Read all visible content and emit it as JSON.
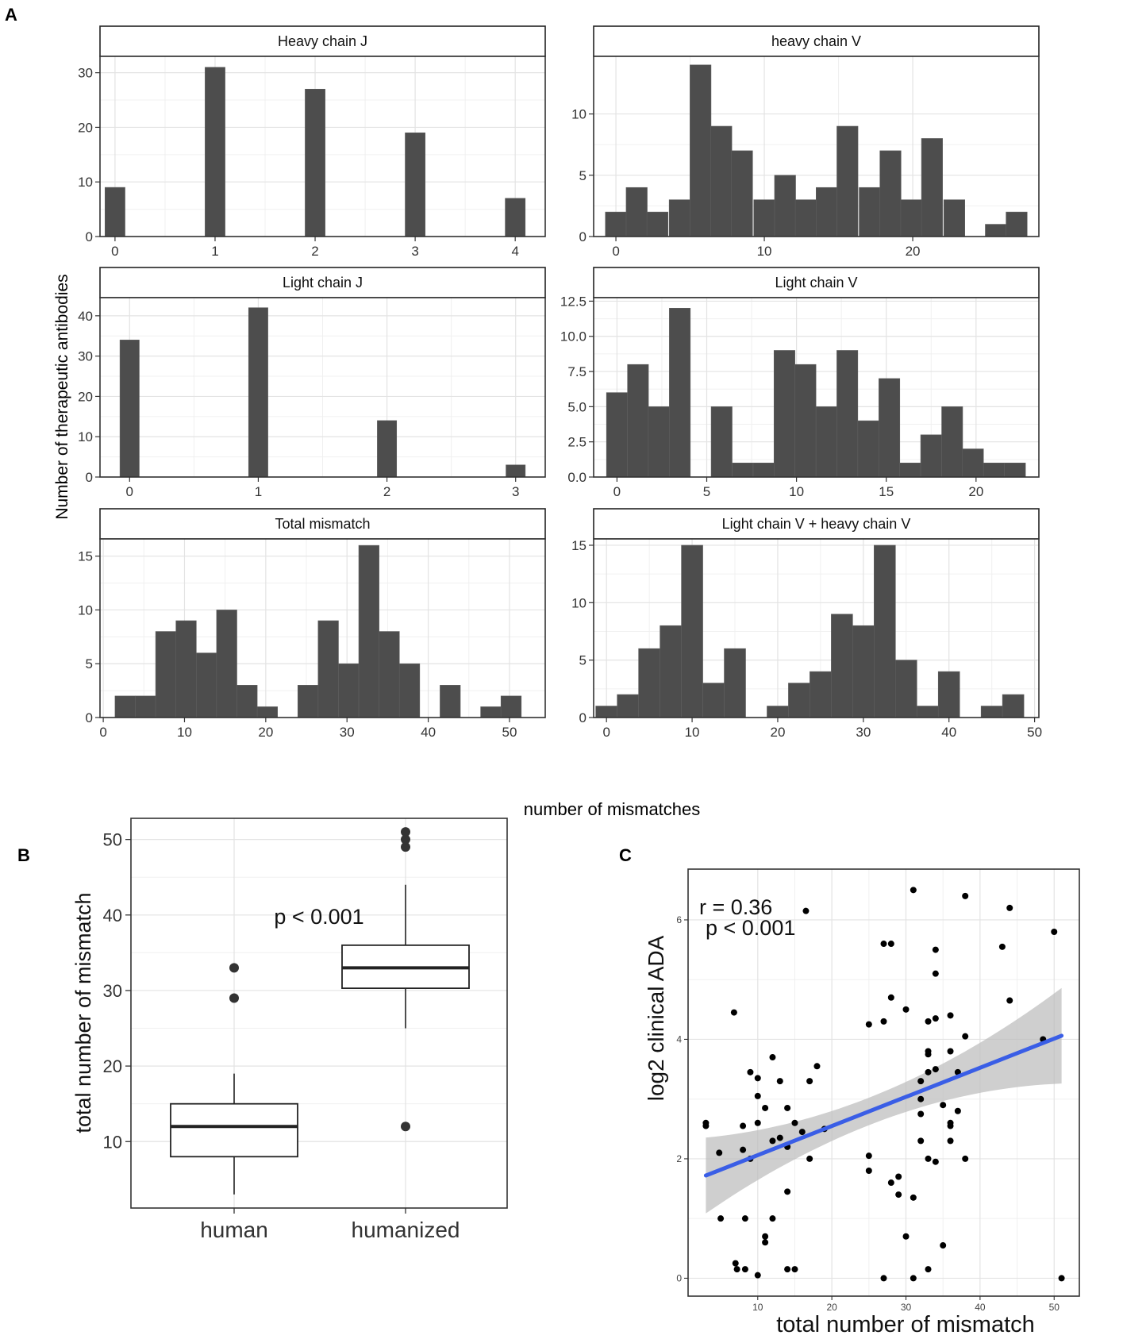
{
  "panel_labels": {
    "a": "A",
    "b": "B",
    "c": "C"
  },
  "panel_a": {
    "ylabel": "Number of therapeutic antibodies",
    "xlabel": "number of mismatches"
  },
  "chart_data": [
    {
      "id": "hj",
      "type": "bar",
      "title": "Heavy chain J",
      "x": [
        0,
        1,
        2,
        3,
        4
      ],
      "values": [
        9,
        31,
        27,
        19,
        7
      ],
      "barwidth": 0.2,
      "xlim": [
        -0.15,
        4.3
      ],
      "ylim": [
        0,
        33
      ],
      "xticks": [
        0,
        1,
        2,
        3,
        4
      ],
      "yticks": [
        0,
        10,
        20,
        30
      ]
    },
    {
      "id": "hv",
      "type": "bar",
      "title": "heavy chain V",
      "x": [
        0,
        1.4,
        2.8,
        4.3,
        5.7,
        7.1,
        8.5,
        10,
        11.4,
        12.8,
        14.2,
        15.6,
        17.1,
        18.5,
        19.9,
        21.3,
        22.8,
        24.2,
        25.6,
        27
      ],
      "values": [
        2,
        4,
        2,
        3,
        14,
        9,
        7,
        3,
        5,
        3,
        4,
        9,
        4,
        7,
        3,
        8,
        3,
        0,
        1,
        2
      ],
      "barwidth": 1.42,
      "xlim": [
        -1.5,
        28.5
      ],
      "ylim": [
        0,
        14.7
      ],
      "xticks": [
        0,
        10,
        20
      ],
      "yticks": [
        0,
        5,
        10
      ]
    },
    {
      "id": "lj",
      "type": "bar",
      "title": "Light chain J",
      "x": [
        0,
        1,
        2,
        3
      ],
      "values": [
        34,
        42,
        14,
        3
      ],
      "barwidth": 0.15,
      "xlim": [
        -0.23,
        3.23
      ],
      "ylim": [
        0,
        44.5
      ],
      "xticks": [
        0,
        1,
        2,
        3
      ],
      "yticks": [
        0,
        10,
        20,
        30,
        40
      ]
    },
    {
      "id": "lv",
      "type": "bar",
      "title": "Light chain V",
      "x": [
        0,
        1.17,
        2.33,
        3.5,
        4.67,
        5.83,
        7,
        8.17,
        9.33,
        10.5,
        11.67,
        12.83,
        14,
        15.17,
        16.33,
        17.5,
        18.67,
        19.83,
        21,
        22.17
      ],
      "values": [
        6,
        8,
        5,
        12,
        0,
        5,
        1,
        1,
        9,
        8,
        5,
        9,
        4,
        7,
        1,
        3,
        5,
        2,
        1,
        1
      ],
      "barwidth": 1.167,
      "xlim": [
        -1.3,
        23.5
      ],
      "ylim": [
        0,
        12.75
      ],
      "xticks": [
        0,
        5,
        10,
        15,
        20
      ],
      "yticks": [
        0,
        2.5,
        5,
        7.5,
        10,
        12.5
      ],
      "ytick_labels": [
        "0.0",
        "2.5",
        "5.0",
        "7.5",
        "10.0",
        "12.5"
      ]
    },
    {
      "id": "tm",
      "type": "bar",
      "title": "Total mismatch",
      "x": [
        2.7,
        5.2,
        7.7,
        10.2,
        12.7,
        15.2,
        17.7,
        20.2,
        22.7,
        25.2,
        27.7,
        30.2,
        32.7,
        35.2,
        37.7,
        40.2,
        42.7,
        45.2,
        47.7,
        50.2
      ],
      "values": [
        2,
        2,
        8,
        9,
        6,
        10,
        3,
        1,
        0,
        3,
        9,
        5,
        16,
        8,
        5,
        0,
        3,
        0,
        1,
        2
      ],
      "barwidth": 2.5,
      "xlim": [
        -0.4,
        54.4
      ],
      "ylim": [
        0,
        16.6
      ],
      "xticks": [
        0,
        10,
        20,
        30,
        40,
        50
      ],
      "yticks": [
        0,
        5,
        10,
        15
      ]
    },
    {
      "id": "lh",
      "type": "bar",
      "title": "Light chain V + heavy chain V",
      "x": [
        0,
        2.5,
        5,
        7.5,
        10,
        12.5,
        15,
        17.5,
        20,
        22.5,
        25,
        27.5,
        30,
        32.5,
        35,
        37.5,
        40,
        42.5,
        45,
        47.5
      ],
      "values": [
        1,
        2,
        6,
        8,
        15,
        3,
        6,
        0,
        1,
        3,
        4,
        9,
        8,
        15,
        5,
        1,
        4,
        0,
        1,
        2
      ],
      "barwidth": 2.5,
      "xlim": [
        -1.5,
        50.5
      ],
      "ylim": [
        0,
        15.55
      ],
      "xticks": [
        0,
        10,
        20,
        30,
        40,
        50
      ],
      "yticks": [
        0,
        5,
        10,
        15
      ]
    },
    {
      "id": "box",
      "type": "box",
      "categories": [
        "human",
        "humanized"
      ],
      "ylabel": "total number of mismatch",
      "annotation": "p < 0.001",
      "ylim": [
        1.2,
        52.8
      ],
      "yticks": [
        10,
        20,
        30,
        40,
        50
      ],
      "boxes": [
        {
          "name": "human",
          "q1": 8,
          "median": 12,
          "q3": 15,
          "whisker_low": 3,
          "whisker_high": 19,
          "outliers": [
            29,
            33
          ]
        },
        {
          "name": "humanized",
          "q1": 30.3,
          "median": 33,
          "q3": 36,
          "whisker_low": 25,
          "whisker_high": 44,
          "outliers": [
            12,
            49,
            50,
            51
          ]
        }
      ]
    },
    {
      "id": "scatter",
      "type": "scatter",
      "xlabel": "total number of mismatch",
      "ylabel": "log2 clinical ADA",
      "annotations": [
        "r = 0.36",
        "p < 0.001"
      ],
      "xlim": [
        0.6,
        53.4
      ],
      "ylim": [
        -0.3,
        6.85
      ],
      "xticks": [
        10,
        20,
        30,
        40,
        50
      ],
      "yticks": [
        0,
        2,
        4,
        6
      ],
      "regression": {
        "x": [
          3,
          51
        ],
        "y": [
          1.72,
          4.06
        ],
        "ci_lower": [
          1.08,
          3.25
        ],
        "ci_upper": [
          2.35,
          4.85
        ],
        "ci_mid_x": 25,
        "ci_mid_half_width": 0.23
      },
      "points": [
        [
          3,
          2.55
        ],
        [
          3,
          2.6
        ],
        [
          4.8,
          2.1
        ],
        [
          5,
          1.0
        ],
        [
          6.8,
          4.45
        ],
        [
          7,
          0.25
        ],
        [
          7.2,
          0.15
        ],
        [
          8,
          2.15
        ],
        [
          8,
          2.55
        ],
        [
          8.3,
          0.15
        ],
        [
          8.3,
          1.0
        ],
        [
          9,
          2.0
        ],
        [
          9,
          3.45
        ],
        [
          10,
          3.05
        ],
        [
          10,
          3.35
        ],
        [
          10,
          2.6
        ],
        [
          10,
          0.05
        ],
        [
          11,
          2.85
        ],
        [
          11,
          0.6
        ],
        [
          11,
          0.7
        ],
        [
          12,
          3.7
        ],
        [
          12,
          2.3
        ],
        [
          12,
          1.0
        ],
        [
          13,
          3.3
        ],
        [
          13,
          2.35
        ],
        [
          14,
          2.85
        ],
        [
          14,
          2.2
        ],
        [
          14,
          1.45
        ],
        [
          14,
          0.15
        ],
        [
          15,
          0.15
        ],
        [
          15,
          2.6
        ],
        [
          16,
          2.45
        ],
        [
          16.5,
          6.15
        ],
        [
          17,
          3.3
        ],
        [
          17,
          2.0
        ],
        [
          18,
          3.55
        ],
        [
          19,
          2.5
        ],
        [
          25,
          4.25
        ],
        [
          25,
          2.05
        ],
        [
          25,
          1.8
        ],
        [
          27,
          5.6
        ],
        [
          27,
          4.3
        ],
        [
          27,
          0.0
        ],
        [
          28,
          5.6
        ],
        [
          28,
          4.7
        ],
        [
          28,
          1.6
        ],
        [
          29,
          1.7
        ],
        [
          29,
          1.4
        ],
        [
          30,
          4.5
        ],
        [
          30,
          0.7
        ],
        [
          31,
          6.5
        ],
        [
          31,
          1.35
        ],
        [
          32,
          3.3
        ],
        [
          32,
          3.0
        ],
        [
          32,
          2.75
        ],
        [
          32,
          2.3
        ],
        [
          33,
          4.3
        ],
        [
          33,
          3.8
        ],
        [
          33,
          3.75
        ],
        [
          33,
          3.45
        ],
        [
          33,
          2.0
        ],
        [
          33,
          0.15
        ],
        [
          34,
          5.5
        ],
        [
          34,
          5.1
        ],
        [
          34,
          4.35
        ],
        [
          34,
          3.5
        ],
        [
          34,
          1.95
        ],
        [
          35,
          2.9
        ],
        [
          35,
          0.55
        ],
        [
          36,
          4.4
        ],
        [
          36,
          3.8
        ],
        [
          36,
          2.6
        ],
        [
          36,
          2.55
        ],
        [
          36,
          2.3
        ],
        [
          37,
          3.45
        ],
        [
          37,
          2.8
        ],
        [
          38,
          6.4
        ],
        [
          38,
          4.05
        ],
        [
          38,
          2.0
        ],
        [
          43,
          5.55
        ],
        [
          44,
          6.2
        ],
        [
          44,
          4.65
        ],
        [
          50,
          5.8
        ],
        [
          51,
          0.0
        ],
        [
          48.5,
          4.0
        ],
        [
          31,
          0.0
        ]
      ]
    }
  ]
}
